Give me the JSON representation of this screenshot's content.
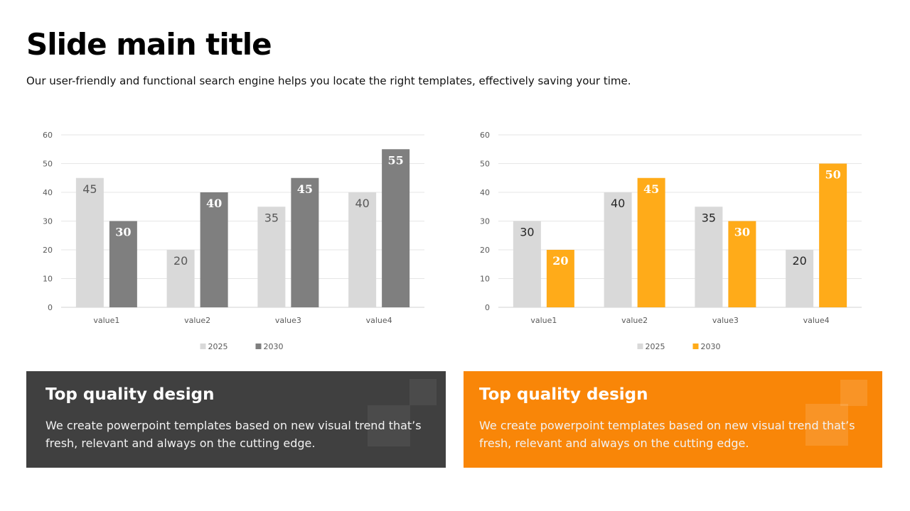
{
  "header": {
    "title": "Slide main title",
    "subtitle": "Our user-friendly and functional search engine helps you locate the right templates, effectively saving your time."
  },
  "chart_data": [
    {
      "type": "bar",
      "categories": [
        "value1",
        "value2",
        "value3",
        "value4"
      ],
      "series": [
        {
          "name": "2025",
          "values": [
            45,
            20,
            35,
            40
          ],
          "color": "#d9d9d9",
          "label_color": "#595959"
        },
        {
          "name": "2030",
          "values": [
            30,
            40,
            45,
            55
          ],
          "color": "#7f7f7f",
          "label_color": "#ffffff"
        }
      ],
      "ylim": [
        0,
        60
      ],
      "yticks": [
        0,
        10,
        20,
        30,
        40,
        50,
        60
      ],
      "grid": true,
      "legend": "bottom"
    },
    {
      "type": "bar",
      "categories": [
        "value1",
        "value2",
        "value3",
        "value4"
      ],
      "series": [
        {
          "name": "2025",
          "values": [
            30,
            40,
            35,
            20
          ],
          "color": "#d9d9d9",
          "label_color": "#262626"
        },
        {
          "name": "2030",
          "values": [
            20,
            45,
            30,
            50
          ],
          "color": "#ffab19",
          "label_color": "#ffffff"
        }
      ],
      "ylim": [
        0,
        60
      ],
      "yticks": [
        0,
        10,
        20,
        30,
        40,
        50,
        60
      ],
      "grid": true,
      "legend": "bottom"
    }
  ],
  "cards": [
    {
      "title": "Top quality design",
      "body": "We create powerpoint templates based on new visual trend that’s fresh, relevant and always on the cutting edge."
    },
    {
      "title": "Top quality design",
      "body": "We create powerpoint templates based on new visual trend that’s fresh, relevant and always on the cutting edge."
    }
  ]
}
